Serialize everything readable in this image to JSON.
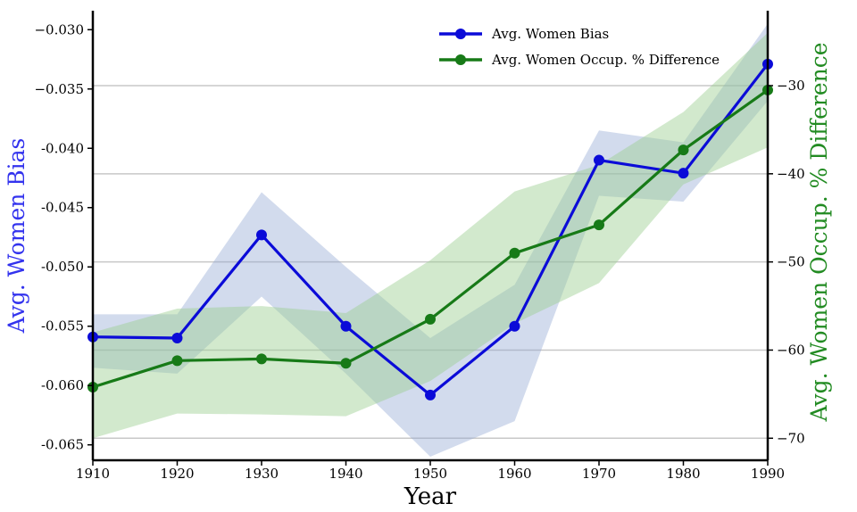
{
  "chart_data": {
    "type": "line",
    "xlabel": "Year",
    "x": [
      1910,
      1920,
      1930,
      1940,
      1950,
      1960,
      1970,
      1980,
      1990
    ],
    "x_ticks": [
      "1910",
      "1920",
      "1930",
      "1940",
      "1950",
      "1960",
      "1970",
      "1980",
      "1990"
    ],
    "xlim": [
      1910,
      1990
    ],
    "y_left": {
      "label": "Avg. Women Bias",
      "color": "#3333ee",
      "lim": [
        -0.0663,
        -0.0284
      ],
      "ticks": [
        "−0.030",
        "−0.035",
        "-0.040",
        "-0.045",
        "-0.050",
        "-0.055",
        "-0.060",
        "-0.065"
      ],
      "tick_values": [
        -0.03,
        -0.035,
        -0.04,
        -0.045,
        -0.05,
        -0.055,
        -0.06,
        -0.065
      ]
    },
    "y_right": {
      "label": "Avg. Women Occup. % Difference",
      "color": "#228b22",
      "lim": [
        -72.5,
        -21.5
      ],
      "ticks": [
        "−30",
        "−40",
        "−50",
        "−60",
        "−70"
      ],
      "tick_values": [
        -30,
        -40,
        -50,
        -60,
        -70
      ]
    },
    "grid": "horizontal",
    "legend_position": "top-right",
    "series": [
      {
        "name": "Avg. Women Bias",
        "axis": "left",
        "color": "#0b0bd8",
        "band_color": "#8fa6d2",
        "values": [
          -0.0559,
          -0.056,
          -0.0473,
          -0.055,
          -0.0608,
          -0.055,
          -0.041,
          -0.0421,
          -0.0329
        ],
        "lower": [
          -0.0585,
          -0.059,
          -0.0525,
          -0.059,
          -0.066,
          -0.063,
          -0.044,
          -0.0445,
          -0.036
        ],
        "upper": [
          -0.054,
          -0.054,
          -0.0437,
          -0.05,
          -0.056,
          -0.0515,
          -0.0385,
          -0.0395,
          -0.0295
        ]
      },
      {
        "name": "Avg. Women Occup. % Difference",
        "axis": "right",
        "color": "#177a17",
        "band_color": "#9ccf90",
        "values": [
          -64.2,
          -61.2,
          -61.0,
          -61.5,
          -56.5,
          -49.0,
          -45.8,
          -37.3,
          -30.5
        ],
        "lower": [
          -70.0,
          -67.2,
          -67.3,
          -67.5,
          -63.5,
          -57.0,
          -52.4,
          -41.2,
          -37.0
        ],
        "upper": [
          -58.0,
          -55.3,
          -55.0,
          -55.8,
          -49.8,
          -42.0,
          -39.0,
          -33.0,
          -24.0
        ]
      }
    ]
  }
}
